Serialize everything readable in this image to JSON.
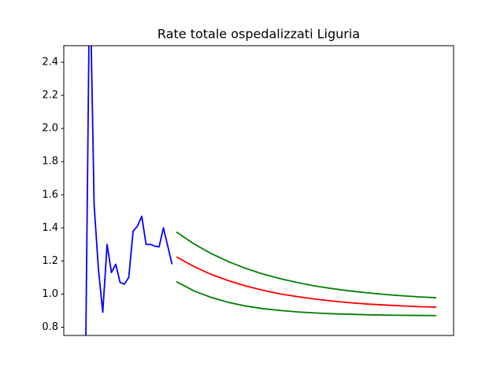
{
  "chart_data": {
    "type": "line",
    "title": "Rate totale ospedalizzati Liguria",
    "x": [
      0,
      1,
      2,
      3,
      4,
      5,
      6,
      7,
      8,
      9,
      10,
      11,
      12,
      13,
      14,
      15,
      16,
      17,
      18,
      19,
      20,
      21,
      25,
      29,
      33,
      37,
      41,
      45,
      49,
      53,
      57,
      61,
      65,
      69,
      73,
      77,
      81
    ],
    "series": [
      {
        "color": "#0000ff",
        "values": [
          0.5,
          3.0,
          1.54,
          1.15,
          0.89,
          1.3,
          1.13,
          1.18,
          1.07,
          1.06,
          1.1,
          1.38,
          1.41,
          1.47,
          1.3,
          1.3,
          1.29,
          1.285,
          1.4,
          1.29,
          1.18,
          null,
          null,
          null,
          null,
          null,
          null,
          null,
          null,
          null,
          null,
          null,
          null,
          null,
          null,
          null,
          null
        ]
      },
      {
        "color": "#ff0000",
        "values": [
          null,
          null,
          null,
          null,
          null,
          null,
          null,
          null,
          null,
          null,
          null,
          null,
          null,
          null,
          null,
          null,
          null,
          null,
          null,
          null,
          null,
          1.225,
          1.167,
          1.119,
          1.081,
          1.049,
          1.023,
          1.001,
          0.984,
          0.97,
          0.958,
          0.948,
          0.94,
          0.934,
          0.929,
          0.924,
          0.921
        ]
      },
      {
        "color": "#008000",
        "values": [
          null,
          null,
          null,
          null,
          null,
          null,
          null,
          null,
          null,
          null,
          null,
          null,
          null,
          null,
          null,
          null,
          null,
          null,
          null,
          null,
          null,
          1.375,
          1.304,
          1.245,
          1.196,
          1.155,
          1.121,
          1.093,
          1.069,
          1.049,
          1.033,
          1.019,
          1.008,
          0.998,
          0.99,
          0.983,
          0.978
        ]
      },
      {
        "color": "#008000",
        "values": [
          null,
          null,
          null,
          null,
          null,
          null,
          null,
          null,
          null,
          null,
          null,
          null,
          null,
          null,
          null,
          null,
          null,
          null,
          null,
          null,
          null,
          1.075,
          1.02,
          0.98,
          0.95,
          0.928,
          0.912,
          0.901,
          0.892,
          0.886,
          0.881,
          0.878,
          0.875,
          0.873,
          0.872,
          0.871,
          0.87
        ]
      }
    ],
    "xlim": [
      -5,
      85
    ],
    "ylim": [
      0.75,
      2.5
    ],
    "yticks": [
      0.8,
      {
        "value": 1.0,
        "label": "1.0"
      },
      1.2,
      1.4,
      1.6,
      1.8,
      {
        "value": 2.0,
        "label": "2.0"
      },
      2.2,
      2.4
    ]
  }
}
